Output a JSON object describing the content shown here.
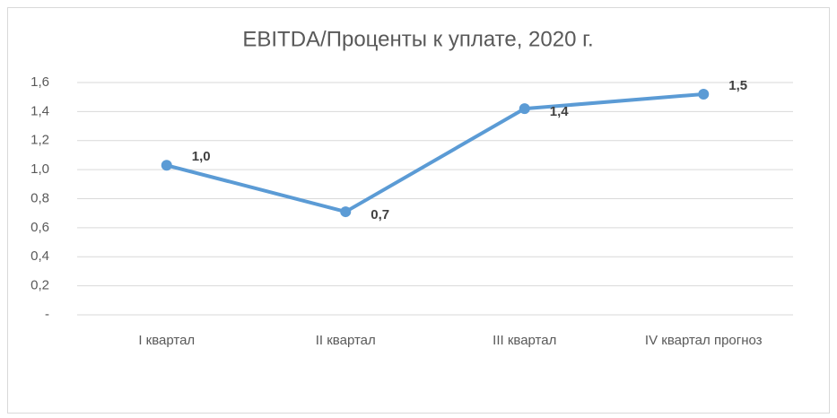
{
  "chart_data": {
    "type": "line",
    "title": "EBITDA/Проценты к уплате, 2020 г.",
    "categories": [
      "I квартал",
      "II квартал",
      "III квартал",
      "IV квартал прогноз"
    ],
    "series": [
      {
        "color": "#5b9bd5",
        "values": [
          1.03,
          0.71,
          1.42,
          1.52
        ],
        "value_labels": [
          "1,0",
          "0,7",
          "1,4",
          "1,5"
        ]
      }
    ],
    "ylim": [
      0,
      1.6
    ],
    "yticks": [
      {
        "value": 0,
        "label": "-"
      },
      {
        "value": 0.2,
        "label": "0,2"
      },
      {
        "value": 0.4,
        "label": "0,4"
      },
      {
        "value": 0.6,
        "label": "0,6"
      },
      {
        "value": 0.8,
        "label": "0,8"
      },
      {
        "value": 1.0,
        "label": "1,0"
      },
      {
        "value": 1.2,
        "label": "1,2"
      },
      {
        "value": 1.4,
        "label": "1,4"
      },
      {
        "value": 1.6,
        "label": "1,6"
      }
    ],
    "grid": true
  }
}
